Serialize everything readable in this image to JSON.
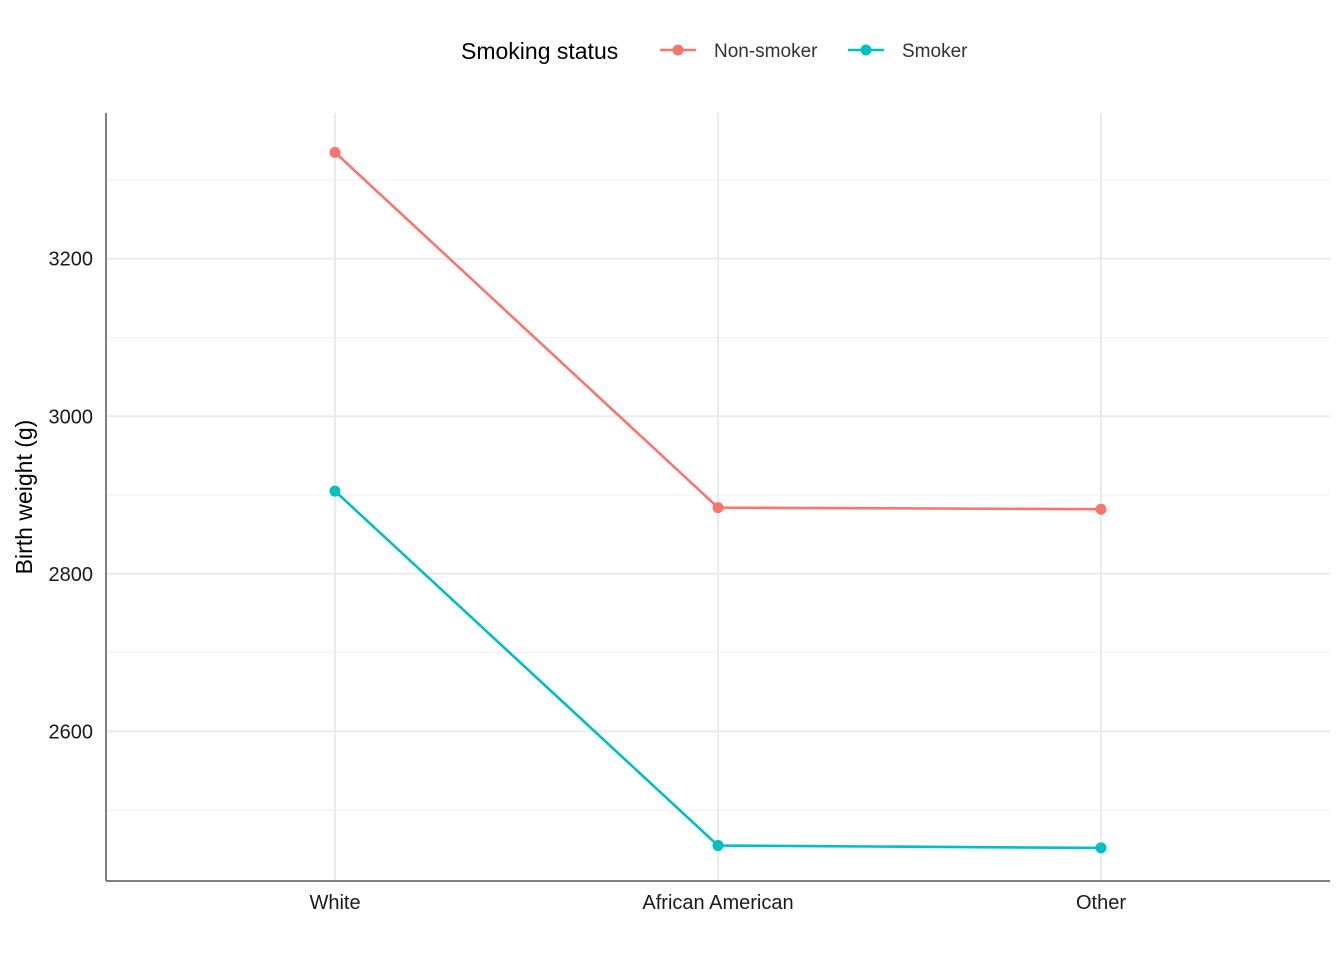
{
  "chart_data": {
    "type": "line",
    "categories": [
      "White",
      "African American",
      "Other"
    ],
    "series": [
      {
        "name": "Non-smoker",
        "values": [
          3335,
          2884,
          2882
        ],
        "color": "#F8766D"
      },
      {
        "name": "Smoker",
        "values": [
          2905,
          2455,
          2452
        ],
        "color": "#00BFC4"
      }
    ],
    "ylabel": "Birth weight (g)",
    "ylim": [
      2410,
      3385
    ],
    "yticks": [
      2600,
      2800,
      3000,
      3200
    ],
    "yminor": [
      2500,
      2700,
      2900,
      3100,
      3300
    ],
    "legend": {
      "title": "Smoking status",
      "position": "top"
    },
    "grid": true
  }
}
